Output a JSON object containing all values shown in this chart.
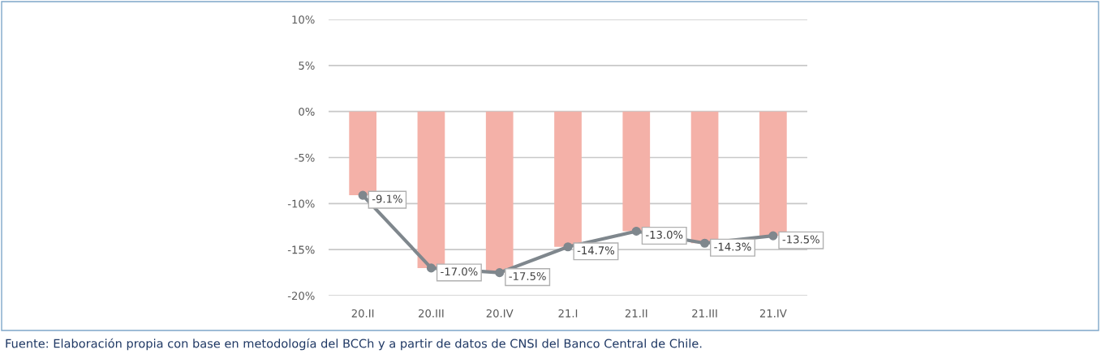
{
  "chart_data": {
    "type": "bar",
    "categories": [
      "20.II",
      "20.III",
      "20.IV",
      "21.I",
      "21.II",
      "21.III",
      "21.IV"
    ],
    "series": [
      {
        "color": "#f4b1a8",
        "values": [
          -9.1,
          -17.0,
          -17.5,
          -14.7,
          -13.0,
          -14.3,
          -13.5
        ]
      },
      {
        "type": "line",
        "color": "#7f878d",
        "marker": "circle",
        "values": [
          -9.1,
          -17.0,
          -17.5,
          -14.7,
          -13.0,
          -14.3,
          -13.5
        ],
        "value_labels": [
          "-9.1%",
          "-17.0%",
          "-17.5%",
          "-14.7%",
          "-13.0%",
          "-14.3%",
          "-13.5%"
        ]
      }
    ],
    "ylim": [
      -20,
      10
    ],
    "yticks": [
      {
        "value": -20,
        "label": "-20%"
      },
      {
        "value": -15,
        "label": "-15%"
      },
      {
        "value": -10,
        "label": "-10%"
      },
      {
        "value": -5,
        "label": "-5%"
      },
      {
        "value": 0,
        "label": "0%"
      },
      {
        "value": 5,
        "label": "5%"
      },
      {
        "value": 10,
        "label": "10%"
      }
    ],
    "grid": "y",
    "annotations": [
      "Fuente: Elaboración propia con base en metodología del BCCh y a partir de datos de CNSI del Banco Central de Chile."
    ]
  }
}
